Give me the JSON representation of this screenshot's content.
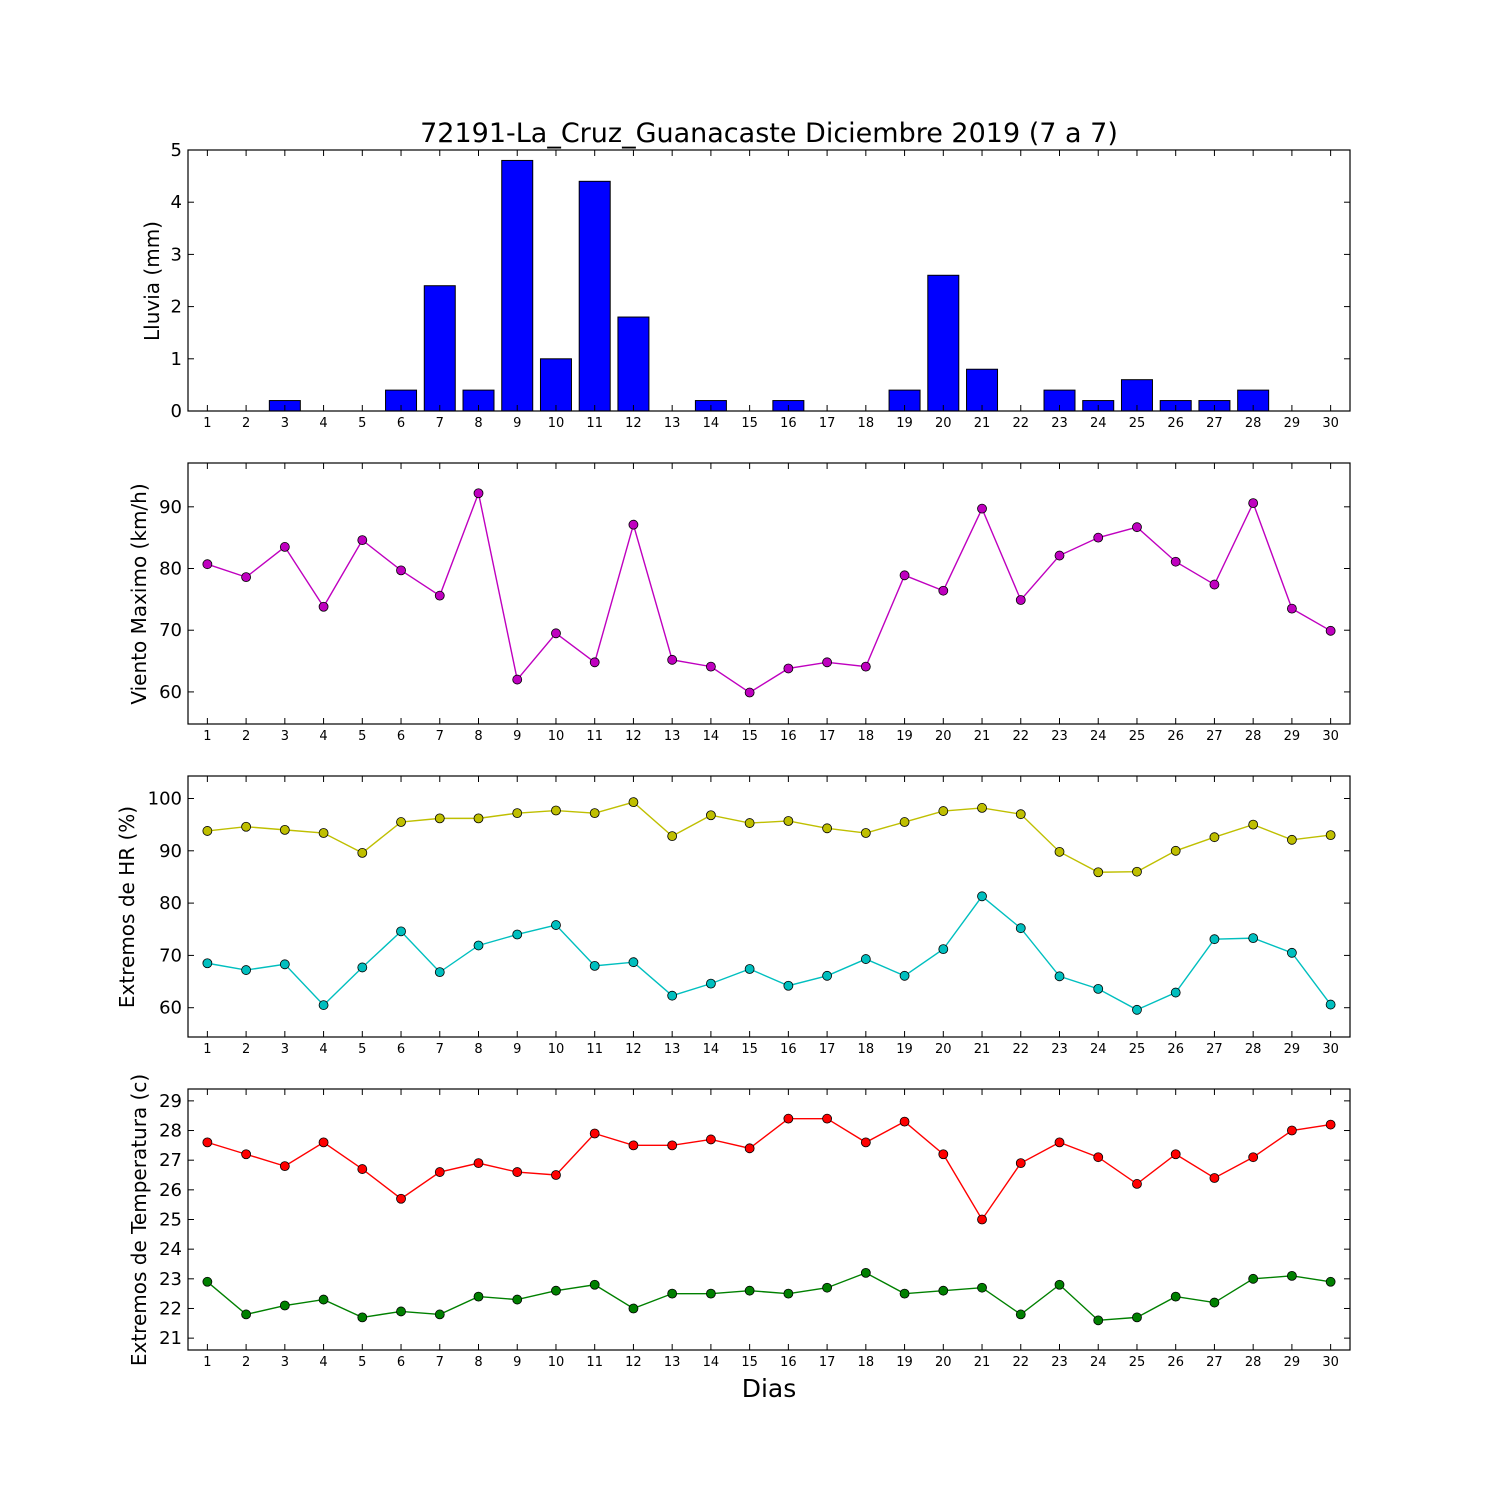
{
  "title": "72191-La_Cruz_Guanacaste Diciembre 2019  (7 a 7)",
  "xlabel": "Dias",
  "chart_data": [
    {
      "type": "bar",
      "ylabel": "Lluvia (mm)",
      "x": [
        1,
        2,
        3,
        4,
        5,
        6,
        7,
        8,
        9,
        10,
        11,
        12,
        13,
        14,
        15,
        16,
        17,
        18,
        19,
        20,
        21,
        22,
        23,
        24,
        25,
        26,
        27,
        28,
        29,
        30
      ],
      "values": [
        0,
        0,
        0.2,
        0,
        0,
        0.4,
        2.4,
        0.4,
        4.8,
        1.0,
        4.4,
        1.8,
        0,
        0.2,
        0,
        0.2,
        0,
        0,
        0.4,
        2.6,
        0.8,
        0,
        0.4,
        0.2,
        0.6,
        0.2,
        0.2,
        0.4,
        0,
        0
      ],
      "ylim": [
        0,
        5
      ],
      "yticks": [
        0,
        1,
        2,
        3,
        4,
        5
      ],
      "color": "#0000ff"
    },
    {
      "type": "line",
      "ylabel": "Viento Maximo (km/h)",
      "x": [
        1,
        2,
        3,
        4,
        5,
        6,
        7,
        8,
        9,
        10,
        11,
        12,
        13,
        14,
        15,
        16,
        17,
        18,
        19,
        20,
        21,
        22,
        23,
        24,
        25,
        26,
        27,
        28,
        29,
        30
      ],
      "series": [
        {
          "color": "#bf00bf",
          "values": [
            80.7,
            78.6,
            83.5,
            73.8,
            84.6,
            79.7,
            75.6,
            92.2,
            62.0,
            69.5,
            64.8,
            87.1,
            65.2,
            64.1,
            59.9,
            63.8,
            64.8,
            64.1,
            78.9,
            76.4,
            89.7,
            74.9,
            82.1,
            85.0,
            86.7,
            81.1,
            77.4,
            90.6,
            73.5,
            69.9
          ]
        }
      ],
      "ylim": [
        54.8,
        97.1
      ],
      "yticks": [
        60,
        70,
        80,
        90
      ]
    },
    {
      "type": "line",
      "ylabel": "Extremos de HR (%)",
      "x": [
        1,
        2,
        3,
        4,
        5,
        6,
        7,
        8,
        9,
        10,
        11,
        12,
        13,
        14,
        15,
        16,
        17,
        18,
        19,
        20,
        21,
        22,
        23,
        24,
        25,
        26,
        27,
        28,
        29,
        30
      ],
      "series": [
        {
          "color": "#bfbf00",
          "values": [
            93.8,
            94.6,
            94.0,
            93.4,
            89.6,
            95.5,
            96.2,
            96.2,
            97.2,
            97.7,
            97.2,
            99.3,
            92.8,
            96.8,
            95.3,
            95.7,
            94.3,
            93.4,
            95.5,
            97.6,
            98.2,
            97.0,
            89.8,
            85.9,
            86.0,
            90.0,
            92.6,
            95.0,
            92.1,
            93.0
          ]
        },
        {
          "color": "#00bfbf",
          "values": [
            68.5,
            67.2,
            68.3,
            60.5,
            67.7,
            74.6,
            66.8,
            71.9,
            74.0,
            75.8,
            68.0,
            68.7,
            62.3,
            64.6,
            67.4,
            64.2,
            66.1,
            69.3,
            66.1,
            71.2,
            81.3,
            75.2,
            66.0,
            63.6,
            59.6,
            62.9,
            73.1,
            73.3,
            70.5,
            60.6
          ]
        }
      ],
      "ylim": [
        54.4,
        104.3
      ],
      "yticks": [
        60,
        70,
        80,
        90,
        100
      ]
    },
    {
      "type": "line",
      "ylabel": "Extremos de Temperatura (c)",
      "x": [
        1,
        2,
        3,
        4,
        5,
        6,
        7,
        8,
        9,
        10,
        11,
        12,
        13,
        14,
        15,
        16,
        17,
        18,
        19,
        20,
        21,
        22,
        23,
        24,
        25,
        26,
        27,
        28,
        29,
        30
      ],
      "series": [
        {
          "color": "#ff0000",
          "values": [
            27.6,
            27.2,
            26.8,
            27.6,
            26.7,
            25.7,
            26.6,
            26.9,
            26.6,
            26.5,
            27.9,
            27.5,
            27.5,
            27.7,
            27.4,
            28.4,
            28.4,
            27.6,
            28.3,
            27.2,
            25.0,
            26.9,
            27.6,
            27.1,
            26.2,
            27.2,
            26.4,
            27.1,
            28.0,
            28.2
          ]
        },
        {
          "color": "#008000",
          "values": [
            22.9,
            21.8,
            22.1,
            22.3,
            21.7,
            21.9,
            21.8,
            22.4,
            22.3,
            22.6,
            22.8,
            22.0,
            22.5,
            22.5,
            22.6,
            22.5,
            22.7,
            23.2,
            22.5,
            22.6,
            22.7,
            21.8,
            22.8,
            21.6,
            21.7,
            22.4,
            22.2,
            23.0,
            23.1,
            22.9
          ]
        }
      ],
      "ylim": [
        20.6,
        29.4
      ],
      "yticks": [
        21,
        22,
        23,
        24,
        25,
        26,
        27,
        28,
        29
      ]
    }
  ]
}
